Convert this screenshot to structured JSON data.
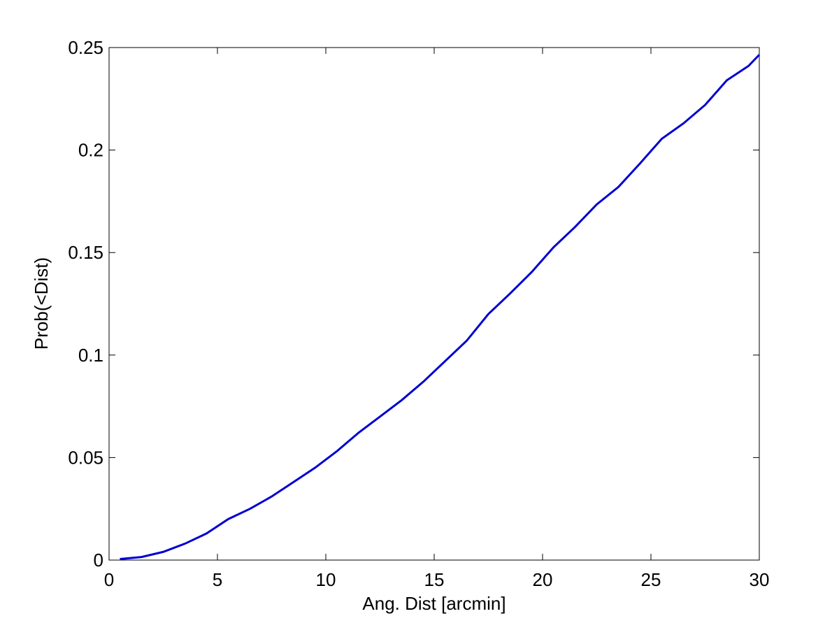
{
  "chart_data": {
    "type": "line",
    "x_label": "Ang. Dist [arcmin]",
    "y_label": "Prob(<Dist)",
    "x": [
      0.5,
      1.5,
      2.5,
      3.5,
      4.5,
      5.5,
      6.5,
      7.5,
      8.5,
      9.5,
      10.5,
      11.5,
      12.5,
      13.5,
      14.5,
      15.5,
      16.5,
      17.5,
      18.5,
      19.5,
      20.5,
      21.5,
      22.5,
      23.5,
      24.5,
      25.5,
      26.5,
      27.5,
      28.5,
      29.5,
      30
    ],
    "series": [
      {
        "color": "#0000d0",
        "values": [
          0.0005,
          0.0015,
          0.004,
          0.008,
          0.013,
          0.02,
          0.025,
          0.031,
          0.038,
          0.045,
          0.053,
          0.062,
          0.07,
          0.078,
          0.087,
          0.097,
          0.107,
          0.12,
          0.13,
          0.1405,
          0.1525,
          0.1625,
          0.1735,
          0.182,
          0.1935,
          0.2055,
          0.213,
          0.222,
          0.234,
          0.241,
          0.2465
        ]
      }
    ],
    "xlim": [
      0,
      30
    ],
    "ylim": [
      0,
      0.25
    ],
    "xticks": [
      0,
      5,
      10,
      15,
      20,
      25,
      30
    ],
    "yticks": [
      0,
      0.05,
      0.1,
      0.15,
      0.2,
      0.25
    ],
    "grid": false
  }
}
